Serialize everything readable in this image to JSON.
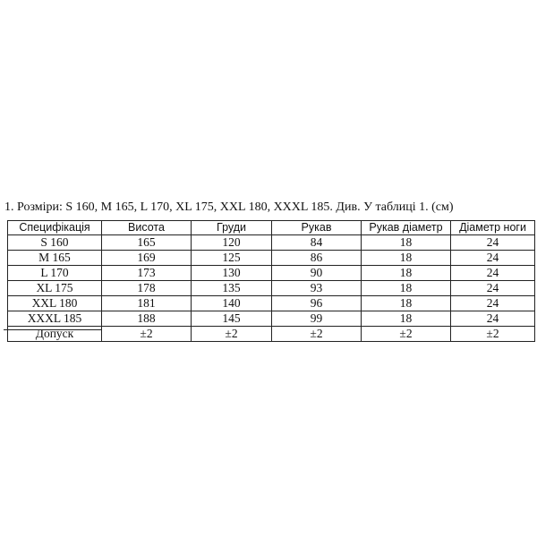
{
  "heading": "1. Розміри: S 160, M 165, L 170, XL 175, XXL 180, XXXL 185. Див. У таблиці 1. (см)",
  "table": {
    "header": [
      "Специфікація",
      "Висота",
      "Груди",
      "Рукав",
      "Рукав діаметр",
      "Діаметр ноги"
    ],
    "rows": [
      [
        "S 160",
        "165",
        "120",
        "84",
        "18",
        "24"
      ],
      [
        "M 165",
        "169",
        "125",
        "86",
        "18",
        "24"
      ],
      [
        "L 170",
        "173",
        "130",
        "90",
        "18",
        "24"
      ],
      [
        "XL 175",
        "178",
        "135",
        "93",
        "18",
        "24"
      ],
      [
        "XXL 180",
        "181",
        "140",
        "96",
        "18",
        "24"
      ],
      [
        "XXXL 185",
        "188",
        "145",
        "99",
        "18",
        "24"
      ],
      [
        "Допуск",
        "±2",
        "±2",
        "±2",
        "±2",
        "±2"
      ]
    ]
  }
}
